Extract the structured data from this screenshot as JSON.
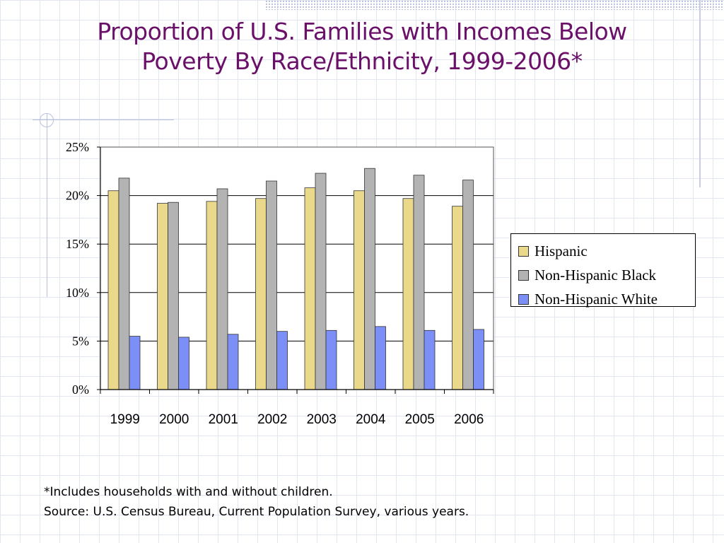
{
  "slide": {
    "title_line1": "Proportion of U.S. Families with Incomes Below",
    "title_line2": "Poverty By Race/Ethnicity, 1999-2006*",
    "footnote": "*Includes households with and without children.",
    "source": "Source: U.S. Census Bureau, Current Population Survey, various years."
  },
  "chart_data": {
    "type": "bar",
    "categories": [
      "1999",
      "2000",
      "2001",
      "2002",
      "2003",
      "2004",
      "2005",
      "2006"
    ],
    "series": [
      {
        "name": "Hispanic",
        "color": "#ead98a",
        "values": [
          20.5,
          19.2,
          19.4,
          19.7,
          20.8,
          20.5,
          19.7,
          18.9
        ]
      },
      {
        "name": "Non-Hispanic Black",
        "color": "#b3b3b3",
        "values": [
          21.8,
          19.3,
          20.7,
          21.5,
          22.3,
          22.8,
          22.1,
          21.6
        ]
      },
      {
        "name": "Non-Hispanic White",
        "color": "#7b8ff7",
        "values": [
          5.5,
          5.4,
          5.7,
          6.0,
          6.1,
          6.5,
          6.1,
          6.2
        ]
      }
    ],
    "yticks": [
      "0%",
      "5%",
      "10%",
      "15%",
      "20%",
      "25%"
    ],
    "ylim": [
      0,
      25
    ],
    "grid": true,
    "legend_position": "right"
  }
}
